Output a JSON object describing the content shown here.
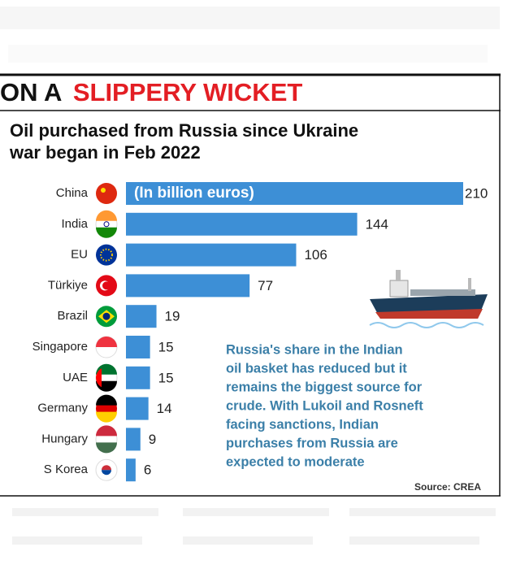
{
  "header": {
    "lead": "ON A",
    "highlight": "SLIPPERY WICKET"
  },
  "chart_data": {
    "type": "barh",
    "title": [
      "Oil purchased from Russia since Ukraine",
      "war began in Feb 2022"
    ],
    "unit_note": "(In billion euros)",
    "categories": [
      "China",
      "India",
      "EU",
      "Türkiye",
      "Brazil",
      "Singapore",
      "UAE",
      "Germany",
      "Hungary",
      "S Korea"
    ],
    "values": [
      210,
      144,
      106,
      77,
      19,
      15,
      15,
      14,
      9,
      6
    ],
    "color": "#3d8fd6",
    "annotation": [
      "Russia's share in the Indian",
      "oil basket has reduced but it",
      "remains the biggest source for",
      "crude. With Lukoil and Rosneft",
      "facing sanctions, Indian",
      "purchases from Russia are",
      "expected to moderate"
    ],
    "source": "Source: CREA"
  }
}
